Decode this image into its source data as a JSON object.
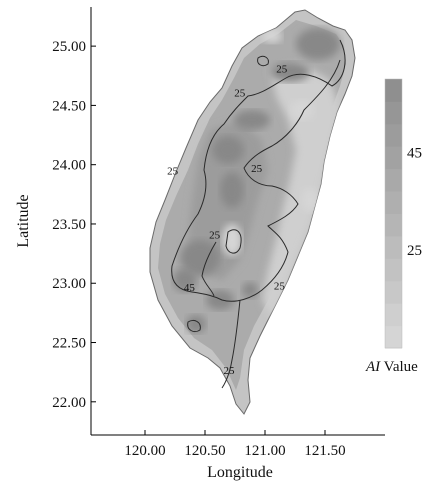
{
  "chart_data": {
    "type": "heatmap",
    "title": "",
    "xlabel": "Longitude",
    "ylabel": "Latitude",
    "xlim": [
      119.55,
      122.0
    ],
    "ylim": [
      21.72,
      25.33
    ],
    "x_ticks": [
      {
        "value": 120.0,
        "label": "120.00"
      },
      {
        "value": 120.5,
        "label": "120.50"
      },
      {
        "value": 121.0,
        "label": "121.00"
      },
      {
        "value": 121.5,
        "label": "121.50"
      }
    ],
    "y_ticks": [
      {
        "value": 22.0,
        "label": "22.00"
      },
      {
        "value": 22.5,
        "label": "22.50"
      },
      {
        "value": 23.0,
        "label": "23.00"
      },
      {
        "value": 23.5,
        "label": "23.50"
      },
      {
        "value": 24.0,
        "label": "24.00"
      },
      {
        "value": 24.5,
        "label": "24.50"
      },
      {
        "value": 25.0,
        "label": "25.00"
      }
    ],
    "grid": false,
    "colorbar": {
      "title_italic": "AI",
      "title_rest": " Value",
      "ticks": [
        {
          "value": 25,
          "label": "25"
        },
        {
          "value": 45,
          "label": "45"
        }
      ],
      "range": [
        5,
        60
      ],
      "steps": 12,
      "color_low": "#d8d8d8",
      "color_high": "#8c8c8c"
    },
    "contour_labels": [
      {
        "text": "25",
        "lon": 121.14,
        "lat": 24.81
      },
      {
        "text": "25",
        "lon": 120.79,
        "lat": 24.61
      },
      {
        "text": "25",
        "lon": 120.93,
        "lat": 23.97
      },
      {
        "text": "25",
        "lon": 120.23,
        "lat": 23.95
      },
      {
        "text": "25",
        "lon": 120.58,
        "lat": 23.41
      },
      {
        "text": "25",
        "lon": 121.12,
        "lat": 22.98
      },
      {
        "text": "45",
        "lon": 120.37,
        "lat": 22.97
      },
      {
        "text": "25",
        "lon": 120.7,
        "lat": 22.27
      }
    ]
  }
}
